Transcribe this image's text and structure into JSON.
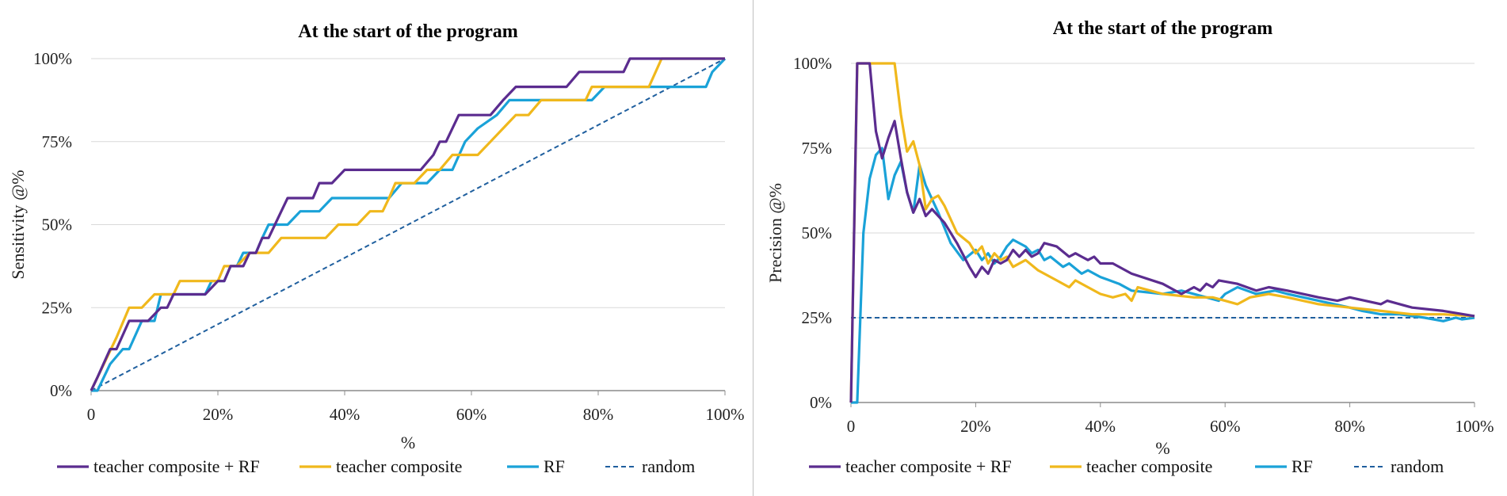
{
  "chart_data": [
    {
      "type": "line",
      "title": "At the start of the program",
      "xlabel": "%",
      "ylabel": "Sensitivity @%",
      "xlim": [
        0,
        100
      ],
      "ylim": [
        0,
        100
      ],
      "x_ticks": [
        "0",
        "20%",
        "40%",
        "60%",
        "80%",
        "100%"
      ],
      "y_ticks": [
        "0%",
        "25%",
        "50%",
        "75%",
        "100%"
      ],
      "legend": "bottom",
      "series": [
        {
          "name": "teacher composite + RF",
          "color": "#5b2c8f",
          "dash": false,
          "points": [
            [
              0,
              0
            ],
            [
              1,
              4
            ],
            [
              3,
              12.5
            ],
            [
              4,
              12.5
            ],
            [
              6,
              21
            ],
            [
              9,
              21
            ],
            [
              11,
              25
            ],
            [
              12,
              25
            ],
            [
              13,
              29
            ],
            [
              18,
              29
            ],
            [
              20,
              33
            ],
            [
              21,
              33
            ],
            [
              22,
              37.5
            ],
            [
              24,
              37.5
            ],
            [
              25,
              41.5
            ],
            [
              26,
              41.5
            ],
            [
              27,
              46
            ],
            [
              28,
              46
            ],
            [
              29,
              50
            ],
            [
              30,
              54
            ],
            [
              31,
              58
            ],
            [
              35,
              58
            ],
            [
              36,
              62.5
            ],
            [
              38,
              62.5
            ],
            [
              40,
              66.5
            ],
            [
              52,
              66.5
            ],
            [
              54,
              71
            ],
            [
              55,
              75
            ],
            [
              56,
              75
            ],
            [
              58,
              83
            ],
            [
              61,
              83
            ],
            [
              63,
              83
            ],
            [
              65,
              87.5
            ],
            [
              67,
              91.5
            ],
            [
              75,
              91.5
            ],
            [
              77,
              96
            ],
            [
              84,
              96
            ],
            [
              85,
              100
            ],
            [
              100,
              100
            ]
          ]
        },
        {
          "name": "teacher composite",
          "color": "#f0b81c",
          "dash": false,
          "points": [
            [
              0,
              0
            ],
            [
              2,
              8
            ],
            [
              4,
              16
            ],
            [
              6,
              25
            ],
            [
              8,
              25
            ],
            [
              10,
              29
            ],
            [
              13,
              29
            ],
            [
              14,
              33
            ],
            [
              20,
              33
            ],
            [
              21,
              37.5
            ],
            [
              23,
              37.5
            ],
            [
              25,
              41.5
            ],
            [
              28,
              41.5
            ],
            [
              30,
              46
            ],
            [
              37,
              46
            ],
            [
              39,
              50
            ],
            [
              42,
              50
            ],
            [
              44,
              54
            ],
            [
              46,
              54
            ],
            [
              47,
              58
            ],
            [
              48,
              62.5
            ],
            [
              51,
              62.5
            ],
            [
              53,
              66.5
            ],
            [
              55,
              66.5
            ],
            [
              57,
              71
            ],
            [
              59,
              71
            ],
            [
              61,
              71
            ],
            [
              63,
              75
            ],
            [
              65,
              79
            ],
            [
              67,
              83
            ],
            [
              69,
              83
            ],
            [
              71,
              87.5
            ],
            [
              78,
              87.5
            ],
            [
              79,
              91.5
            ],
            [
              88,
              91.5
            ],
            [
              90,
              100
            ],
            [
              100,
              100
            ]
          ]
        },
        {
          "name": "RF",
          "color": "#1aa2d8",
          "dash": false,
          "points": [
            [
              0,
              0
            ],
            [
              1,
              0
            ],
            [
              3,
              8
            ],
            [
              5,
              12.5
            ],
            [
              6,
              12.5
            ],
            [
              8,
              21
            ],
            [
              10,
              21
            ],
            [
              11,
              29
            ],
            [
              18,
              29
            ],
            [
              19,
              33
            ],
            [
              21,
              33
            ],
            [
              22,
              37.5
            ],
            [
              23,
              37.5
            ],
            [
              24,
              41.5
            ],
            [
              26,
              41.5
            ],
            [
              27,
              46
            ],
            [
              28,
              50
            ],
            [
              31,
              50
            ],
            [
              33,
              54
            ],
            [
              36,
              54
            ],
            [
              38,
              58
            ],
            [
              47,
              58
            ],
            [
              49,
              62.5
            ],
            [
              53,
              62.5
            ],
            [
              55,
              66.5
            ],
            [
              57,
              66.5
            ],
            [
              59,
              75
            ],
            [
              61,
              79
            ],
            [
              64,
              83
            ],
            [
              66,
              87.5
            ],
            [
              69,
              87.5
            ],
            [
              79,
              87.5
            ],
            [
              81,
              91.5
            ],
            [
              97,
              91.5
            ],
            [
              98,
              96
            ],
            [
              100,
              100
            ]
          ]
        },
        {
          "name": "random",
          "color": "#1f5f9e",
          "dash": true,
          "points": [
            [
              0,
              0
            ],
            [
              100,
              100
            ]
          ]
        }
      ]
    },
    {
      "type": "line",
      "title": "At the start of the program",
      "xlabel": "%",
      "ylabel": "Precision @%",
      "xlim": [
        0,
        100
      ],
      "ylim": [
        0,
        100
      ],
      "x_ticks": [
        "0",
        "20%",
        "40%",
        "60%",
        "80%",
        "100%"
      ],
      "y_ticks": [
        "0%",
        "25%",
        "50%",
        "75%",
        "100%"
      ],
      "legend": "bottom",
      "series": [
        {
          "name": "teacher composite + RF",
          "color": "#5b2c8f",
          "dash": false,
          "points": [
            [
              0,
              0
            ],
            [
              1,
              100
            ],
            [
              3,
              100
            ],
            [
              4,
              80
            ],
            [
              5,
              72
            ],
            [
              6,
              78
            ],
            [
              7,
              83
            ],
            [
              8,
              72
            ],
            [
              9,
              62
            ],
            [
              10,
              56
            ],
            [
              11,
              60
            ],
            [
              12,
              55
            ],
            [
              13,
              57
            ],
            [
              15,
              53
            ],
            [
              17,
              47
            ],
            [
              19,
              40
            ],
            [
              20,
              37
            ],
            [
              21,
              40
            ],
            [
              22,
              38
            ],
            [
              23,
              42
            ],
            [
              24,
              41
            ],
            [
              25,
              42
            ],
            [
              26,
              45
            ],
            [
              27,
              43
            ],
            [
              28,
              45
            ],
            [
              29,
              43
            ],
            [
              30,
              44
            ],
            [
              31,
              47
            ],
            [
              33,
              46
            ],
            [
              35,
              43
            ],
            [
              36,
              44
            ],
            [
              37,
              43
            ],
            [
              38,
              42
            ],
            [
              39,
              43
            ],
            [
              40,
              41
            ],
            [
              42,
              41
            ],
            [
              45,
              38
            ],
            [
              50,
              35
            ],
            [
              53,
              32
            ],
            [
              55,
              34
            ],
            [
              56,
              33
            ],
            [
              57,
              35
            ],
            [
              58,
              34
            ],
            [
              59,
              36
            ],
            [
              62,
              35
            ],
            [
              65,
              33
            ],
            [
              67,
              34
            ],
            [
              70,
              33
            ],
            [
              75,
              31
            ],
            [
              78,
              30
            ],
            [
              80,
              31
            ],
            [
              85,
              29
            ],
            [
              86,
              30
            ],
            [
              90,
              28
            ],
            [
              95,
              27
            ],
            [
              100,
              25.5
            ]
          ]
        },
        {
          "name": "teacher composite",
          "color": "#f0b81c",
          "dash": false,
          "points": [
            [
              0,
              0
            ],
            [
              1,
              100
            ],
            [
              7,
              100
            ],
            [
              8,
              85
            ],
            [
              9,
              74
            ],
            [
              10,
              77
            ],
            [
              11,
              70
            ],
            [
              12,
              57
            ],
            [
              13,
              60
            ],
            [
              14,
              61
            ],
            [
              15,
              58
            ],
            [
              17,
              50
            ],
            [
              19,
              47
            ],
            [
              20,
              44
            ],
            [
              21,
              46
            ],
            [
              22,
              41
            ],
            [
              23,
              44
            ],
            [
              24,
              42
            ],
            [
              25,
              43
            ],
            [
              26,
              40
            ],
            [
              28,
              42
            ],
            [
              30,
              39
            ],
            [
              33,
              36
            ],
            [
              35,
              34
            ],
            [
              36,
              36
            ],
            [
              38,
              34
            ],
            [
              40,
              32
            ],
            [
              42,
              31
            ],
            [
              44,
              32
            ],
            [
              45,
              30
            ],
            [
              46,
              34
            ],
            [
              48,
              33
            ],
            [
              50,
              32
            ],
            [
              55,
              31
            ],
            [
              58,
              31
            ],
            [
              60,
              30
            ],
            [
              62,
              29
            ],
            [
              64,
              31
            ],
            [
              67,
              32
            ],
            [
              70,
              31
            ],
            [
              75,
              29
            ],
            [
              80,
              28
            ],
            [
              85,
              27
            ],
            [
              90,
              26
            ],
            [
              95,
              26
            ],
            [
              100,
              25.5
            ]
          ]
        },
        {
          "name": "RF",
          "color": "#1aa2d8",
          "dash": false,
          "points": [
            [
              0,
              0
            ],
            [
              1,
              0
            ],
            [
              2,
              50
            ],
            [
              3,
              66
            ],
            [
              4,
              73
            ],
            [
              5,
              75
            ],
            [
              6,
              60
            ],
            [
              7,
              67
            ],
            [
              8,
              71
            ],
            [
              9,
              62
            ],
            [
              10,
              56
            ],
            [
              11,
              70
            ],
            [
              12,
              64
            ],
            [
              14,
              56
            ],
            [
              16,
              47
            ],
            [
              18,
              42
            ],
            [
              20,
              45
            ],
            [
              21,
              42
            ],
            [
              22,
              44
            ],
            [
              23,
              41
            ],
            [
              24,
              43
            ],
            [
              25,
              46
            ],
            [
              26,
              48
            ],
            [
              28,
              46
            ],
            [
              29,
              44
            ],
            [
              30,
              45
            ],
            [
              31,
              42
            ],
            [
              32,
              43
            ],
            [
              34,
              40
            ],
            [
              35,
              41
            ],
            [
              37,
              38
            ],
            [
              38,
              39
            ],
            [
              40,
              37
            ],
            [
              43,
              35
            ],
            [
              45,
              33
            ],
            [
              50,
              32
            ],
            [
              53,
              33
            ],
            [
              57,
              31
            ],
            [
              59,
              30
            ],
            [
              60,
              32
            ],
            [
              62,
              34
            ],
            [
              65,
              32
            ],
            [
              68,
              33
            ],
            [
              70,
              32
            ],
            [
              75,
              30
            ],
            [
              80,
              28
            ],
            [
              82,
              27
            ],
            [
              85,
              26
            ],
            [
              88,
              26
            ],
            [
              92,
              25
            ],
            [
              95,
              24
            ],
            [
              97,
              25
            ],
            [
              98,
              24.5
            ],
            [
              100,
              25
            ]
          ]
        },
        {
          "name": "random",
          "color": "#1f5f9e",
          "dash": true,
          "points": [
            [
              0,
              25
            ],
            [
              100,
              25
            ]
          ]
        }
      ]
    }
  ]
}
